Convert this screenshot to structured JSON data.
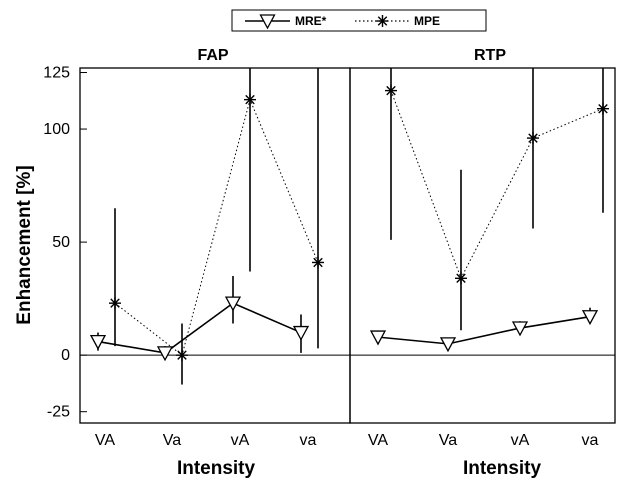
{
  "chart_data": {
    "type": "line",
    "ylabel": "Enhancement [%]",
    "ylim": [
      -30,
      127
    ],
    "yticks": [
      125,
      100,
      50,
      0,
      -25
    ],
    "grid": false,
    "legend_position": "top-center",
    "legend": [
      {
        "label": "MRE*",
        "marker": "triangle-down",
        "line": "solid"
      },
      {
        "label": "MPE",
        "marker": "asterisk",
        "line": "dotted"
      }
    ],
    "panels": [
      {
        "title": "FAP",
        "xlabel": "Intensity",
        "categories": [
          "VA",
          "Va",
          "vA",
          "va"
        ],
        "series": [
          {
            "name": "MRE*",
            "values": [
              6,
              1,
              23,
              10
            ],
            "err_low": [
              2,
              -1,
              14,
              1
            ],
            "err_high": [
              10,
              4,
              35,
              18
            ]
          },
          {
            "name": "MPE",
            "values": [
              23,
              0,
              113,
              41
            ],
            "err_low": [
              4,
              -13,
              37,
              3
            ],
            "err_high": [
              65,
              14,
              127,
              127
            ]
          }
        ]
      },
      {
        "title": "RTP",
        "xlabel": "Intensity",
        "categories": [
          "VA",
          "Va",
          "vA",
          "va"
        ],
        "series": [
          {
            "name": "MRE*",
            "values": [
              8,
              5,
              12,
              17
            ],
            "err_low": [
              5,
              3,
              9,
              14
            ],
            "err_high": [
              10,
              7,
              15,
              21
            ]
          },
          {
            "name": "MPE",
            "values": [
              117,
              34,
              96,
              109
            ],
            "err_low": [
              51,
              11,
              56,
              63
            ],
            "err_high": [
              127,
              82,
              127,
              127
            ]
          }
        ]
      }
    ]
  },
  "colors": {
    "ink": "#000000",
    "background": "#ffffff"
  }
}
